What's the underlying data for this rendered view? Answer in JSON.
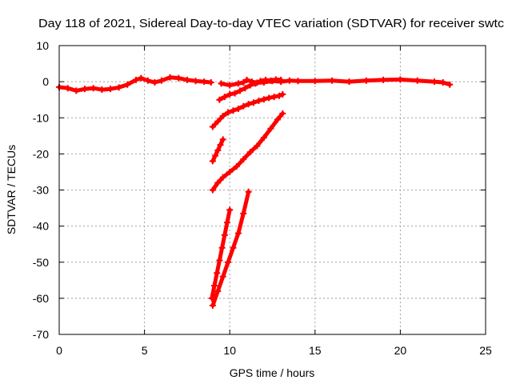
{
  "chart_data": {
    "type": "scatter",
    "title": "Day 118 of 2021, Sidereal Day-to-day VTEC variation (SDTVAR) for receiver swtc",
    "xlabel": "GPS time / hours",
    "ylabel": "SDTVAR / TECUs",
    "xlim": [
      0,
      25
    ],
    "ylim": [
      -70,
      10
    ],
    "xticks": [
      0,
      5,
      10,
      15,
      20,
      25
    ],
    "yticks": [
      -70,
      -60,
      -50,
      -40,
      -30,
      -20,
      -10,
      0,
      10
    ],
    "grid": true,
    "series_color": "#ff0000",
    "series": [
      {
        "x": [
          0.0,
          0.5,
          1.0,
          1.5,
          2.0,
          2.5,
          3.0,
          3.5,
          4.0,
          4.5,
          4.8,
          5.2,
          5.6,
          6.0,
          6.5,
          7.0,
          7.5,
          8.0,
          8.5,
          8.9
        ],
        "y": [
          -1.5,
          -1.8,
          -2.5,
          -2.0,
          -1.8,
          -2.2,
          -2.0,
          -1.6,
          -0.8,
          0.5,
          1.0,
          0.3,
          -0.2,
          0.3,
          1.2,
          1.0,
          0.5,
          0.2,
          0.0,
          -0.2
        ]
      },
      {
        "x": [
          9.5,
          10.0,
          10.5,
          10.8,
          11.0,
          11.3,
          11.6,
          12.0,
          12.5,
          13.0,
          13.5,
          14.0,
          15.0,
          16.0,
          17.0,
          18.0,
          19.0,
          20.0,
          21.0,
          22.0,
          22.5,
          22.9
        ],
        "y": [
          -0.5,
          -1.0,
          -0.5,
          -0.2,
          0.5,
          0.0,
          -0.3,
          -0.2,
          0.2,
          0.0,
          0.3,
          0.2,
          0.2,
          0.3,
          0.0,
          0.3,
          0.5,
          0.6,
          0.3,
          0.0,
          -0.2,
          -0.8
        ]
      },
      {
        "x": [
          9.4,
          9.7,
          10.0,
          10.3,
          10.6,
          10.9,
          11.2,
          11.5,
          11.8,
          12.1,
          12.4,
          12.7,
          13.0
        ],
        "y": [
          -5.0,
          -4.2,
          -3.5,
          -3.2,
          -2.5,
          -1.8,
          -1.0,
          -0.5,
          0.2,
          0.5,
          0.3,
          0.6,
          0.5
        ]
      },
      {
        "x": [
          9.0,
          9.3,
          9.6,
          9.9,
          10.2,
          10.5,
          10.8,
          11.1,
          11.4,
          11.7,
          12.0,
          12.3,
          12.6,
          12.9,
          13.1
        ],
        "y": [
          -12.5,
          -11.0,
          -9.5,
          -8.5,
          -8.0,
          -7.5,
          -6.8,
          -6.2,
          -5.8,
          -5.3,
          -4.9,
          -4.5,
          -4.2,
          -3.9,
          -3.5
        ]
      },
      {
        "x": [
          9.0,
          9.15,
          9.3,
          9.45,
          9.6
        ],
        "y": [
          -22.0,
          -20.5,
          -19.0,
          -17.5,
          -16.0
        ]
      },
      {
        "x": [
          9.0,
          9.3,
          9.6,
          10.0,
          10.4,
          10.8,
          11.2,
          11.6,
          12.0,
          12.4,
          12.8,
          13.1
        ],
        "y": [
          -30.0,
          -28.0,
          -26.5,
          -25.0,
          -23.5,
          -21.5,
          -19.5,
          -17.8,
          -15.5,
          -13.0,
          -10.5,
          -8.8
        ]
      },
      {
        "x": [
          8.95,
          9.1,
          9.25,
          9.4,
          9.55,
          9.7,
          9.85,
          10.0
        ],
        "y": [
          -60.0,
          -56.5,
          -53.0,
          -49.5,
          -46.0,
          -42.5,
          -39.0,
          -35.5
        ]
      },
      {
        "x": [
          9.0,
          9.3,
          9.6,
          9.9,
          10.2,
          10.5,
          10.8,
          11.1
        ],
        "y": [
          -62.0,
          -58.0,
          -54.0,
          -50.0,
          -46.0,
          -42.0,
          -36.5,
          -30.5
        ]
      }
    ]
  }
}
